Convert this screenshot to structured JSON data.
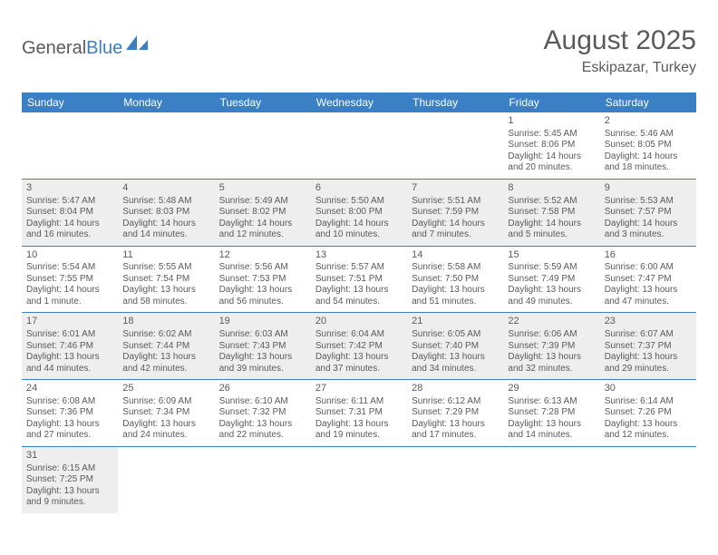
{
  "logo": {
    "text_prefix": "General",
    "text_suffix": "Blue",
    "prefix_color": "#5a5a5a",
    "suffix_color": "#3b7fc4",
    "icon_color": "#3b7fc4"
  },
  "title": "August 2025",
  "location": "Eskipazar, Turkey",
  "colors": {
    "header_bg": "#3b7fc4",
    "header_text": "#ffffff",
    "body_text": "#5a5a5a",
    "shaded_bg": "#eeeeee",
    "rule": "#3b7fc4",
    "page_bg": "#ffffff"
  },
  "fonts": {
    "title_size": 30,
    "location_size": 16,
    "dayhead_size": 12,
    "cell_size": 10,
    "daynum_size": 11
  },
  "day_headers": [
    "Sunday",
    "Monday",
    "Tuesday",
    "Wednesday",
    "Thursday",
    "Friday",
    "Saturday"
  ],
  "weeks": [
    [
      null,
      null,
      null,
      null,
      null,
      {
        "n": "1",
        "sunrise": "Sunrise: 5:45 AM",
        "sunset": "Sunset: 8:06 PM",
        "daylight": "Daylight: 14 hours and 20 minutes."
      },
      {
        "n": "2",
        "sunrise": "Sunrise: 5:46 AM",
        "sunset": "Sunset: 8:05 PM",
        "daylight": "Daylight: 14 hours and 18 minutes."
      }
    ],
    [
      {
        "n": "3",
        "sunrise": "Sunrise: 5:47 AM",
        "sunset": "Sunset: 8:04 PM",
        "daylight": "Daylight: 14 hours and 16 minutes."
      },
      {
        "n": "4",
        "sunrise": "Sunrise: 5:48 AM",
        "sunset": "Sunset: 8:03 PM",
        "daylight": "Daylight: 14 hours and 14 minutes."
      },
      {
        "n": "5",
        "sunrise": "Sunrise: 5:49 AM",
        "sunset": "Sunset: 8:02 PM",
        "daylight": "Daylight: 14 hours and 12 minutes."
      },
      {
        "n": "6",
        "sunrise": "Sunrise: 5:50 AM",
        "sunset": "Sunset: 8:00 PM",
        "daylight": "Daylight: 14 hours and 10 minutes."
      },
      {
        "n": "7",
        "sunrise": "Sunrise: 5:51 AM",
        "sunset": "Sunset: 7:59 PM",
        "daylight": "Daylight: 14 hours and 7 minutes."
      },
      {
        "n": "8",
        "sunrise": "Sunrise: 5:52 AM",
        "sunset": "Sunset: 7:58 PM",
        "daylight": "Daylight: 14 hours and 5 minutes."
      },
      {
        "n": "9",
        "sunrise": "Sunrise: 5:53 AM",
        "sunset": "Sunset: 7:57 PM",
        "daylight": "Daylight: 14 hours and 3 minutes."
      }
    ],
    [
      {
        "n": "10",
        "sunrise": "Sunrise: 5:54 AM",
        "sunset": "Sunset: 7:55 PM",
        "daylight": "Daylight: 14 hours and 1 minute."
      },
      {
        "n": "11",
        "sunrise": "Sunrise: 5:55 AM",
        "sunset": "Sunset: 7:54 PM",
        "daylight": "Daylight: 13 hours and 58 minutes."
      },
      {
        "n": "12",
        "sunrise": "Sunrise: 5:56 AM",
        "sunset": "Sunset: 7:53 PM",
        "daylight": "Daylight: 13 hours and 56 minutes."
      },
      {
        "n": "13",
        "sunrise": "Sunrise: 5:57 AM",
        "sunset": "Sunset: 7:51 PM",
        "daylight": "Daylight: 13 hours and 54 minutes."
      },
      {
        "n": "14",
        "sunrise": "Sunrise: 5:58 AM",
        "sunset": "Sunset: 7:50 PM",
        "daylight": "Daylight: 13 hours and 51 minutes."
      },
      {
        "n": "15",
        "sunrise": "Sunrise: 5:59 AM",
        "sunset": "Sunset: 7:49 PM",
        "daylight": "Daylight: 13 hours and 49 minutes."
      },
      {
        "n": "16",
        "sunrise": "Sunrise: 6:00 AM",
        "sunset": "Sunset: 7:47 PM",
        "daylight": "Daylight: 13 hours and 47 minutes."
      }
    ],
    [
      {
        "n": "17",
        "sunrise": "Sunrise: 6:01 AM",
        "sunset": "Sunset: 7:46 PM",
        "daylight": "Daylight: 13 hours and 44 minutes."
      },
      {
        "n": "18",
        "sunrise": "Sunrise: 6:02 AM",
        "sunset": "Sunset: 7:44 PM",
        "daylight": "Daylight: 13 hours and 42 minutes."
      },
      {
        "n": "19",
        "sunrise": "Sunrise: 6:03 AM",
        "sunset": "Sunset: 7:43 PM",
        "daylight": "Daylight: 13 hours and 39 minutes."
      },
      {
        "n": "20",
        "sunrise": "Sunrise: 6:04 AM",
        "sunset": "Sunset: 7:42 PM",
        "daylight": "Daylight: 13 hours and 37 minutes."
      },
      {
        "n": "21",
        "sunrise": "Sunrise: 6:05 AM",
        "sunset": "Sunset: 7:40 PM",
        "daylight": "Daylight: 13 hours and 34 minutes."
      },
      {
        "n": "22",
        "sunrise": "Sunrise: 6:06 AM",
        "sunset": "Sunset: 7:39 PM",
        "daylight": "Daylight: 13 hours and 32 minutes."
      },
      {
        "n": "23",
        "sunrise": "Sunrise: 6:07 AM",
        "sunset": "Sunset: 7:37 PM",
        "daylight": "Daylight: 13 hours and 29 minutes."
      }
    ],
    [
      {
        "n": "24",
        "sunrise": "Sunrise: 6:08 AM",
        "sunset": "Sunset: 7:36 PM",
        "daylight": "Daylight: 13 hours and 27 minutes."
      },
      {
        "n": "25",
        "sunrise": "Sunrise: 6:09 AM",
        "sunset": "Sunset: 7:34 PM",
        "daylight": "Daylight: 13 hours and 24 minutes."
      },
      {
        "n": "26",
        "sunrise": "Sunrise: 6:10 AM",
        "sunset": "Sunset: 7:32 PM",
        "daylight": "Daylight: 13 hours and 22 minutes."
      },
      {
        "n": "27",
        "sunrise": "Sunrise: 6:11 AM",
        "sunset": "Sunset: 7:31 PM",
        "daylight": "Daylight: 13 hours and 19 minutes."
      },
      {
        "n": "28",
        "sunrise": "Sunrise: 6:12 AM",
        "sunset": "Sunset: 7:29 PM",
        "daylight": "Daylight: 13 hours and 17 minutes."
      },
      {
        "n": "29",
        "sunrise": "Sunrise: 6:13 AM",
        "sunset": "Sunset: 7:28 PM",
        "daylight": "Daylight: 13 hours and 14 minutes."
      },
      {
        "n": "30",
        "sunrise": "Sunrise: 6:14 AM",
        "sunset": "Sunset: 7:26 PM",
        "daylight": "Daylight: 13 hours and 12 minutes."
      }
    ],
    [
      {
        "n": "31",
        "sunrise": "Sunrise: 6:15 AM",
        "sunset": "Sunset: 7:25 PM",
        "daylight": "Daylight: 13 hours and 9 minutes."
      },
      null,
      null,
      null,
      null,
      null,
      null
    ]
  ]
}
